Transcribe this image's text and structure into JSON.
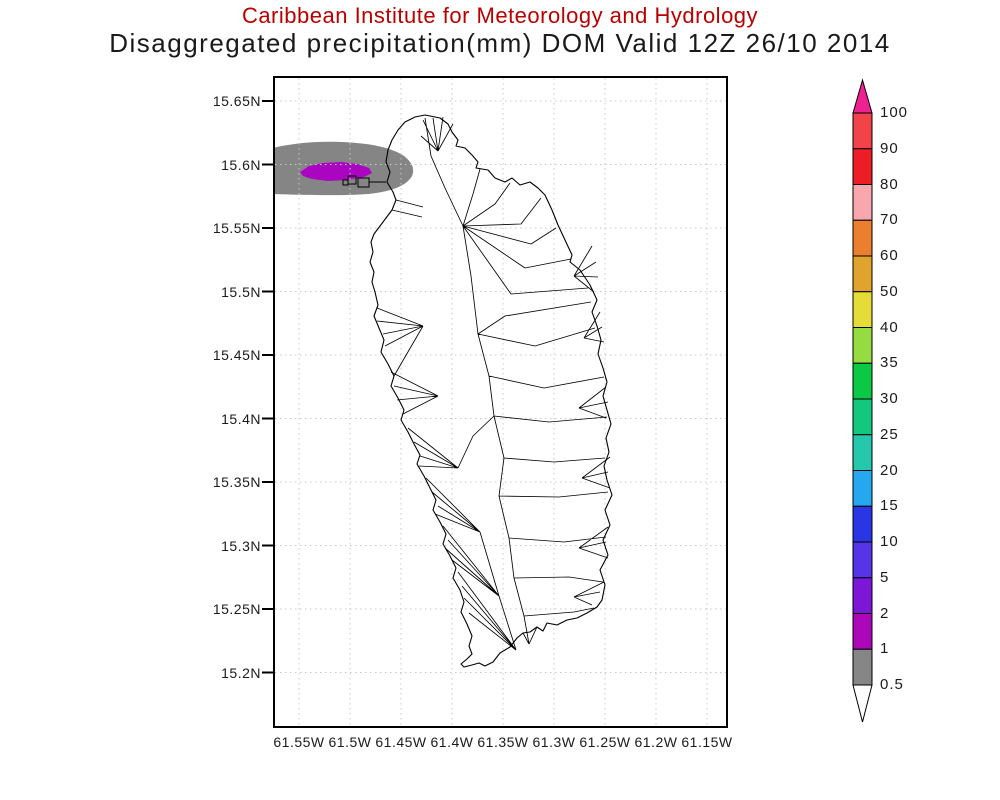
{
  "title": {
    "line1": "Caribbean Institute for Meteorology and Hydrology",
    "line2": "Disaggregated precipitation(mm) DOM Valid 12Z 26/10 2014"
  },
  "axes": {
    "y_ticks": [
      "15.65N",
      "15.6N",
      "15.55N",
      "15.5N",
      "15.45N",
      "15.4N",
      "15.35N",
      "15.3N",
      "15.25N",
      "15.2N"
    ],
    "x_ticks": [
      "61.55W",
      "61.5W",
      "61.45W",
      "61.4W",
      "61.35W",
      "61.3W",
      "61.25W",
      "61.2W",
      "61.15W"
    ]
  },
  "colorbar": {
    "labels": [
      "100",
      "90",
      "80",
      "70",
      "60",
      "50",
      "40",
      "35",
      "30",
      "25",
      "20",
      "15",
      "10",
      "5",
      "2",
      "1",
      "0.5"
    ],
    "segment_colors_top_to_bottom": [
      "#F2434B",
      "#EC1D25",
      "#F9A7AE",
      "#EA7F30",
      "#DFA32E",
      "#E5DC3A",
      "#95DB41",
      "#0BC944",
      "#13C77E",
      "#26C8AD",
      "#26A8EF",
      "#2A35E3",
      "#5634E8",
      "#7C17D8",
      "#AC08B8",
      "#868686"
    ],
    "arrow_top_color": "#EE2190",
    "arrow_bottom_color": "#FFFFFF"
  },
  "colors": {
    "title_line1": "#BB0000",
    "title_line2": "#1A1A1A",
    "axis_label": "#1B1B1B",
    "grid": "#C8C8C8",
    "frame": "#000000",
    "coastline": "#000000",
    "shade_gray": "#858585",
    "shade_magenta": "#AA05C0"
  },
  "chart_data": {
    "type": "heatmap",
    "subtype": "filled-contour precipitation map over island watersheds",
    "institution": "Caribbean Institute for Meteorology and Hydrology",
    "title": "Disaggregated precipitation(mm) DOM Valid 12Z 26/10 2014",
    "region": "Dominica (DOM) with watershed boundary polygons",
    "valid_time": "12Z 26/10 2014",
    "units": "mm",
    "x_axis": {
      "direction": "longitude (degrees West)",
      "tick_labels": [
        "61.55W",
        "61.5W",
        "61.45W",
        "61.4W",
        "61.35W",
        "61.3W",
        "61.25W",
        "61.2W",
        "61.15W"
      ],
      "range": [
        61.576,
        61.129
      ]
    },
    "y_axis": {
      "direction": "latitude (degrees North)",
      "tick_labels": [
        "15.65N",
        "15.6N",
        "15.55N",
        "15.5N",
        "15.45N",
        "15.4N",
        "15.35N",
        "15.3N",
        "15.25N",
        "15.2N"
      ],
      "range": [
        15.156,
        15.67
      ]
    },
    "grid": "dotted graticule at every tick",
    "legend_position": "right vertical color bar with out-of-range arrows",
    "levels_mm": [
      0.5,
      1,
      2,
      5,
      10,
      15,
      20,
      25,
      30,
      35,
      40,
      50,
      60,
      70,
      80,
      90,
      100
    ],
    "level_colors": [
      "#868686",
      "#AC08B8",
      "#7C17D8",
      "#5634E8",
      "#2A35E3",
      "#26A8EF",
      "#26C8AD",
      "#13C77E",
      "#0BC944",
      "#95DB41",
      "#E5DC3A",
      "#DFA32E",
      "#EA7F30",
      "#F9A7AE",
      "#EC1D25",
      "#F2434B",
      "#EE2190"
    ],
    "shaded_regions": [
      {
        "value_range_mm": "0.5-1",
        "color": "#858585",
        "approx_extent": {
          "lon_west": [
            61.576,
            61.436
          ],
          "lat_north": [
            15.576,
            15.615
          ]
        },
        "note": "oval patch touching west frame edge, northwest of island"
      },
      {
        "value_range_mm": "1-2",
        "color": "#AA05C0",
        "approx_extent": {
          "lon_west": [
            61.549,
            61.475
          ],
          "lat_north": [
            15.585,
            15.602
          ]
        },
        "note": "inner contour centered near 61.51W, 15.59N"
      }
    ]
  }
}
